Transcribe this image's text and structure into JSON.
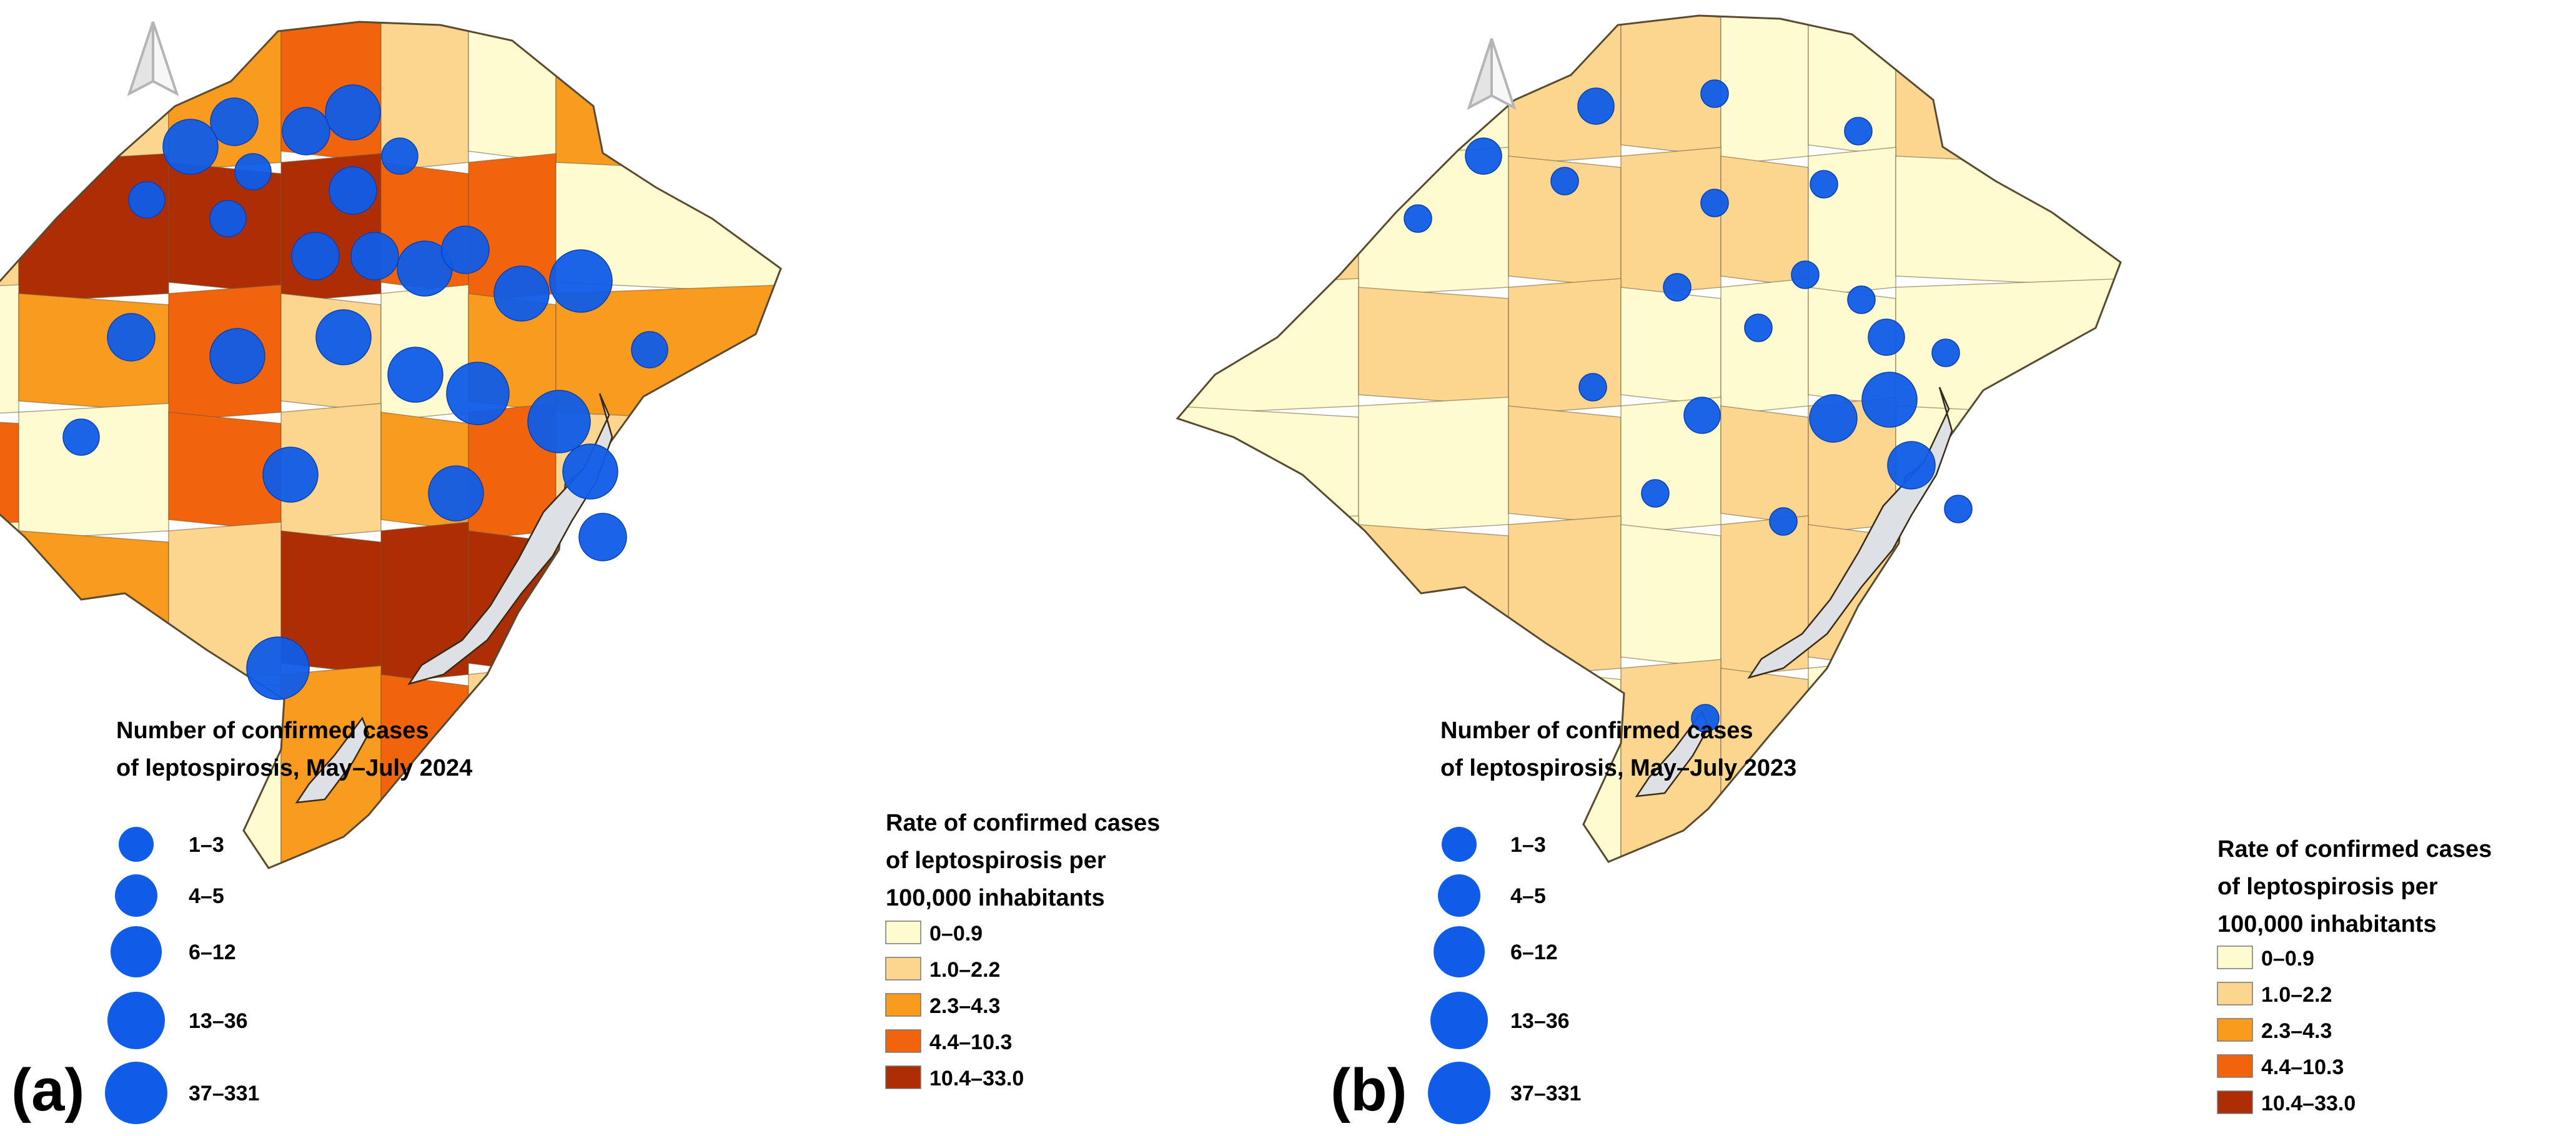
{
  "colors": {
    "rate_0": "#FFFBD0",
    "rate_1": "#FCD68F",
    "rate_2": "#F89B1E",
    "rate_3": "#F2640B",
    "rate_4": "#AD2E05",
    "bubble": "#0F5CE8",
    "lagoon": "#DDE1E5",
    "outline": "#3A2A14",
    "north_arrow": "#B7B7B7"
  },
  "legend_classes": [
    "0–0.9",
    "1.0–2.2",
    "2.3–4.3",
    "4.4–10.3",
    "10.4–33.0"
  ],
  "bubble_classes": [
    "1–3",
    "4–5",
    "6–12",
    "13–36",
    "37–331"
  ],
  "panels": [
    {
      "id": "a",
      "tag": "(a)",
      "cases_title_line1": "Number of confirmed cases",
      "cases_title_line2": "of leptospirosis, May–July 2024",
      "rate_title_line1": "Rate of confirmed cases",
      "rate_title_line2": "of leptospirosis per",
      "rate_title_line3": "100,000 inhabitants",
      "north_arrow_icon": "north-arrow-icon"
    },
    {
      "id": "b",
      "tag": "(b)",
      "cases_title_line1": "Number of confirmed cases",
      "cases_title_line2": "of leptospirosis, May–July 2023",
      "rate_title_line1": "Rate of confirmed cases",
      "rate_title_line2": "of leptospirosis per",
      "rate_title_line3": "100,000 inhabitants",
      "north_arrow_icon": "north-arrow-icon"
    }
  ],
  "regions_2024": [
    3,
    1,
    2,
    3,
    1,
    0,
    2,
    1,
    4,
    4,
    4,
    3,
    3,
    0,
    0,
    2,
    3,
    1,
    0,
    2,
    2,
    3,
    0
  ],
  "regions_2023": [
    1,
    0,
    1,
    1,
    0,
    0,
    1,
    1,
    0,
    1,
    1,
    1,
    0,
    0,
    0,
    1,
    1,
    0,
    0,
    0,
    0,
    0,
    0
  ],
  "municipal_bubbles_2024": [
    {
      "x": -7.15,
      "y": -6.85,
      "cls": 2
    },
    {
      "x": -7.85,
      "y": -6.45,
      "cls": 3
    },
    {
      "x": -6.0,
      "y": -6.7,
      "cls": 2
    },
    {
      "x": -5.25,
      "y": -7.0,
      "cls": 3
    },
    {
      "x": -4.5,
      "y": -6.3,
      "cls": 1
    },
    {
      "x": -5.25,
      "y": -5.75,
      "cls": 2
    },
    {
      "x": -6.85,
      "y": -6.05,
      "cls": 1
    },
    {
      "x": -8.55,
      "y": -5.6,
      "cls": 1
    },
    {
      "x": -7.25,
      "y": -5.3,
      "cls": 1
    },
    {
      "x": -5.85,
      "y": -4.7,
      "cls": 2
    },
    {
      "x": -4.9,
      "y": -4.7,
      "cls": 2
    },
    {
      "x": -4.1,
      "y": -4.5,
      "cls": 3
    },
    {
      "x": -3.45,
      "y": -4.8,
      "cls": 2
    },
    {
      "x": -2.55,
      "y": -4.1,
      "cls": 3
    },
    {
      "x": -1.6,
      "y": -4.3,
      "cls": 4
    },
    {
      "x": -0.5,
      "y": -3.2,
      "cls": 1
    },
    {
      "x": -5.4,
      "y": -3.4,
      "cls": 3
    },
    {
      "x": -4.25,
      "y": -2.8,
      "cls": 3
    },
    {
      "x": -3.25,
      "y": -2.5,
      "cls": 4
    },
    {
      "x": -1.95,
      "y": -2.05,
      "cls": 4
    },
    {
      "x": -7.1,
      "y": -3.1,
      "cls": 3
    },
    {
      "x": -8.8,
      "y": -3.4,
      "cls": 2
    },
    {
      "x": -9.6,
      "y": -1.8,
      "cls": 1
    },
    {
      "x": -6.25,
      "y": -1.2,
      "cls": 3
    },
    {
      "x": -3.6,
      "y": -0.9,
      "cls": 3
    },
    {
      "x": -1.45,
      "y": -1.25,
      "cls": 3
    },
    {
      "x": -6.45,
      "y": 1.9,
      "cls": 4
    },
    {
      "x": -1.25,
      "y": -0.2,
      "cls": 2
    }
  ],
  "municipal_bubbles_2023": [
    {
      "x": -6.8,
      "y": -7.0,
      "cls": 1
    },
    {
      "x": -4.9,
      "y": -7.2,
      "cls": 0
    },
    {
      "x": -2.6,
      "y": -6.6,
      "cls": 0
    },
    {
      "x": -8.6,
      "y": -6.2,
      "cls": 1
    },
    {
      "x": -7.3,
      "y": -5.8,
      "cls": 0
    },
    {
      "x": -4.9,
      "y": -5.45,
      "cls": 0
    },
    {
      "x": -3.15,
      "y": -5.75,
      "cls": 0
    },
    {
      "x": -9.65,
      "y": -5.2,
      "cls": 0
    },
    {
      "x": -5.5,
      "y": -4.1,
      "cls": 0
    },
    {
      "x": -3.45,
      "y": -4.3,
      "cls": 0
    },
    {
      "x": -2.55,
      "y": -3.9,
      "cls": 0
    },
    {
      "x": -4.2,
      "y": -3.45,
      "cls": 0
    },
    {
      "x": -2.15,
      "y": -3.3,
      "cls": 1
    },
    {
      "x": -1.2,
      "y": -3.05,
      "cls": 0
    },
    {
      "x": -6.85,
      "y": -2.5,
      "cls": 0
    },
    {
      "x": -5.1,
      "y": -2.05,
      "cls": 1
    },
    {
      "x": -2.1,
      "y": -2.3,
      "cls": 3
    },
    {
      "x": -3.0,
      "y": -2.0,
      "cls": 2
    },
    {
      "x": -1.75,
      "y": -1.25,
      "cls": 2
    },
    {
      "x": -5.85,
      "y": -0.8,
      "cls": 0
    },
    {
      "x": -3.8,
      "y": -0.35,
      "cls": 0
    },
    {
      "x": -1.0,
      "y": -0.55,
      "cls": 0
    },
    {
      "x": -5.05,
      "y": 2.8,
      "cls": 0
    }
  ]
}
